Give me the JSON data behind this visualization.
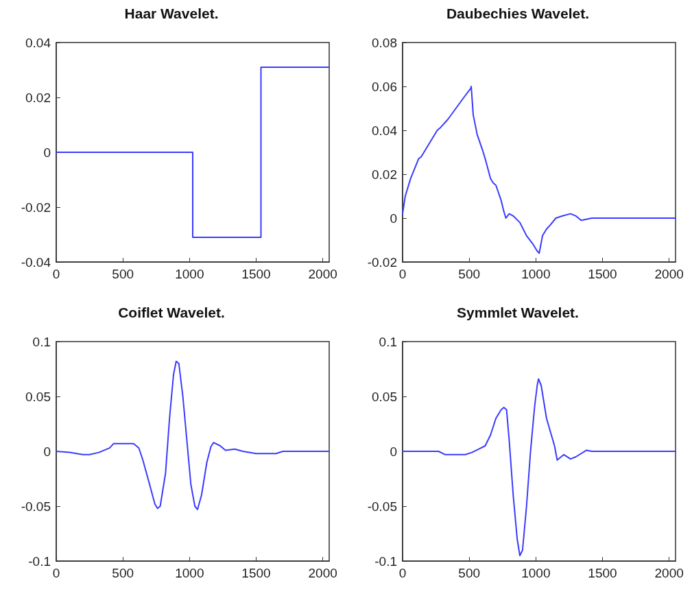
{
  "chart_data": [
    {
      "type": "line",
      "title": "Haar Wavelet.",
      "x": [
        0,
        1024,
        1024,
        1536,
        1536,
        2048
      ],
      "series": [
        {
          "color": "#3a3aff",
          "values": [
            0,
            0,
            -0.031,
            -0.031,
            0.031,
            0.031
          ]
        }
      ],
      "xlim": [
        0,
        2048
      ],
      "xticks": [
        0,
        500,
        1000,
        1500,
        2000
      ],
      "ylim": [
        -0.04,
        0.04
      ],
      "yticks": [
        -0.04,
        -0.02,
        0,
        0.02,
        0.04
      ],
      "marker": "none",
      "line_style": "solid"
    },
    {
      "type": "line",
      "title": "Daubechies Wavelet.",
      "x": [
        0,
        20,
        60,
        120,
        140,
        200,
        260,
        280,
        340,
        400,
        460,
        510,
        515,
        530,
        560,
        600,
        620,
        660,
        680,
        700,
        740,
        760,
        775,
        800,
        830,
        880,
        930,
        980,
        1010,
        1025,
        1050,
        1080,
        1110,
        1150,
        1200,
        1260,
        1300,
        1340,
        1420,
        2048
      ],
      "series": [
        {
          "color": "#3a3aff",
          "values": [
            0.002,
            0.01,
            0.018,
            0.027,
            0.028,
            0.034,
            0.04,
            0.041,
            0.045,
            0.05,
            0.055,
            0.059,
            0.06,
            0.047,
            0.038,
            0.031,
            0.027,
            0.018,
            0.016,
            0.015,
            0.008,
            0.003,
            0,
            0.002,
            0.001,
            -0.002,
            -0.008,
            -0.012,
            -0.015,
            -0.016,
            -0.008,
            -0.005,
            -0.003,
            0,
            0.001,
            0.002,
            0.001,
            -0.001,
            0,
            0
          ]
        }
      ],
      "xlim": [
        0,
        2048
      ],
      "xticks": [
        0,
        500,
        1000,
        1500,
        2000
      ],
      "ylim": [
        -0.02,
        0.08
      ],
      "yticks": [
        -0.02,
        0,
        0.02,
        0.04,
        0.06,
        0.08
      ],
      "marker": "none",
      "line_style": "solid"
    },
    {
      "type": "line",
      "title": "Coiflet Wavelet.",
      "x": [
        0,
        100,
        200,
        250,
        320,
        400,
        430,
        580,
        620,
        650,
        700,
        740,
        760,
        780,
        820,
        850,
        880,
        900,
        920,
        950,
        980,
        1010,
        1040,
        1060,
        1090,
        1130,
        1160,
        1180,
        1230,
        1270,
        1340,
        1400,
        1500,
        1650,
        1700,
        2048
      ],
      "series": [
        {
          "color": "#3a3aff",
          "values": [
            0,
            -0.001,
            -0.003,
            -0.003,
            -0.001,
            0.003,
            0.007,
            0.007,
            0.003,
            -0.008,
            -0.03,
            -0.048,
            -0.052,
            -0.05,
            -0.02,
            0.03,
            0.07,
            0.082,
            0.08,
            0.05,
            0.01,
            -0.03,
            -0.05,
            -0.053,
            -0.04,
            -0.01,
            0.004,
            0.008,
            0.005,
            0.001,
            0.002,
            0,
            -0.002,
            -0.002,
            0,
            0
          ]
        }
      ],
      "xlim": [
        0,
        2048
      ],
      "xticks": [
        0,
        500,
        1000,
        1500,
        2000
      ],
      "ylim": [
        -0.1,
        0.1
      ],
      "yticks": [
        -0.1,
        -0.05,
        0,
        0.05,
        0.1
      ],
      "marker": "none",
      "line_style": "solid"
    },
    {
      "type": "line",
      "title": "Symmlet Wavelet.",
      "x": [
        0,
        270,
        320,
        470,
        520,
        570,
        620,
        660,
        700,
        740,
        760,
        780,
        800,
        830,
        860,
        880,
        900,
        930,
        960,
        990,
        1010,
        1020,
        1040,
        1080,
        1140,
        1160,
        1210,
        1260,
        1300,
        1380,
        1420,
        2048
      ],
      "series": [
        {
          "color": "#3a3aff",
          "values": [
            0,
            0,
            -0.003,
            -0.003,
            -0.001,
            0.002,
            0.005,
            0.015,
            0.03,
            0.038,
            0.04,
            0.038,
            0.01,
            -0.04,
            -0.08,
            -0.095,
            -0.09,
            -0.05,
            0,
            0.04,
            0.06,
            0.066,
            0.06,
            0.03,
            0.005,
            -0.008,
            -0.003,
            -0.007,
            -0.005,
            0.001,
            0,
            0
          ]
        }
      ],
      "xlim": [
        0,
        2048
      ],
      "xticks": [
        0,
        500,
        1000,
        1500,
        2000
      ],
      "ylim": [
        -0.1,
        0.1
      ],
      "yticks": [
        -0.1,
        -0.05,
        0,
        0.05,
        0.1
      ],
      "marker": "none",
      "line_style": "solid"
    }
  ]
}
